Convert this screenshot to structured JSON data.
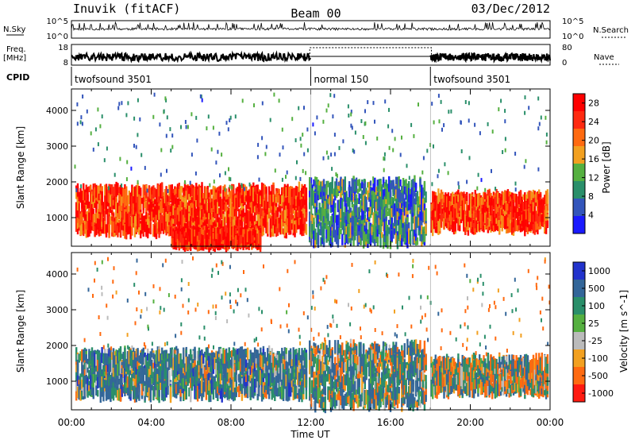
{
  "header": {
    "station": "Inuvik (fitACF)",
    "beam": "Beam 00",
    "date": "03/Dec/2012"
  },
  "strips": {
    "nsky_label": "N.Sky",
    "nsky_ticks": [
      "10^5",
      "10^0"
    ],
    "nsearch_label": "N.Search",
    "freq_label_1": "Freq.",
    "freq_label_2": "[MHz]",
    "freq_ticks": [
      "18",
      "8"
    ],
    "nave_label": "Nave",
    "nave_ticks": [
      "80",
      "0"
    ],
    "cpid_label": "CPID",
    "cpid_segments": [
      {
        "label": "twofsound 3501",
        "start_hour": 0,
        "end_hour": 12
      },
      {
        "label": "normal 150",
        "start_hour": 12,
        "end_hour": 18
      },
      {
        "label": "twofsound 3501",
        "start_hour": 18,
        "end_hour": 24
      }
    ]
  },
  "chart_data": [
    {
      "type": "heatmap",
      "title": "",
      "xlabel": "Time UT",
      "ylabel": "Slant Range [km]",
      "xlim": [
        0,
        24
      ],
      "ylim": [
        200,
        4600
      ],
      "x_ticks": [
        "00:00",
        "04:00",
        "08:00",
        "12:00",
        "16:00",
        "20:00",
        "00:00"
      ],
      "y_ticks": [
        1000,
        2000,
        3000,
        4000
      ],
      "colorbar": {
        "label": "Power [dB]",
        "ticks": [
          4,
          8,
          12,
          16,
          20,
          24,
          28
        ],
        "range": [
          0,
          30
        ],
        "colors": [
          "#1a1aff",
          "#3355bb",
          "#2a8f6a",
          "#55b040",
          "#f2a020",
          "#ff6a10",
          "#ff2a10",
          "#ff0000"
        ]
      },
      "echo_regions": [
        {
          "x_start": 0.2,
          "x_end": 11.8,
          "y_start": 600,
          "y_end": 1800,
          "power_dB": 26
        },
        {
          "x_start": 5.0,
          "x_end": 9.5,
          "y_start": 250,
          "y_end": 600,
          "power_dB": 28
        },
        {
          "x_start": 11.9,
          "x_end": 17.8,
          "y_start": 300,
          "y_end": 2000,
          "power_dB": 8
        },
        {
          "x_start": 18.0,
          "x_end": 23.9,
          "y_start": 700,
          "y_end": 1600,
          "power_dB": 26
        }
      ]
    },
    {
      "type": "heatmap",
      "title": "",
      "xlabel": "Time UT",
      "ylabel": "Slant Range [km]",
      "xlim": [
        0,
        24
      ],
      "ylim": [
        200,
        4600
      ],
      "x_ticks": [
        "00:00",
        "04:00",
        "08:00",
        "12:00",
        "16:00",
        "20:00",
        "00:00"
      ],
      "y_ticks": [
        1000,
        2000,
        3000,
        4000
      ],
      "colorbar": {
        "label": "Velocity [m s^-1]",
        "ticks": [
          1000,
          500,
          100,
          25,
          -25,
          -100,
          -500,
          -1000
        ],
        "range": [
          -1200,
          1200
        ],
        "colors": [
          "#2233cc",
          "#336699",
          "#2a8f6a",
          "#55b040",
          "#bbbbbb",
          "#f2a020",
          "#ff6a10",
          "#ff1a10"
        ]
      },
      "echo_regions": [
        {
          "x_start": 0.2,
          "x_end": 11.8,
          "y_start": 600,
          "y_end": 1800,
          "velocity": 300
        },
        {
          "x_start": 11.9,
          "x_end": 17.8,
          "y_start": 300,
          "y_end": 2000,
          "velocity": 200
        },
        {
          "x_start": 18.0,
          "x_end": 23.9,
          "y_start": 700,
          "y_end": 1600,
          "velocity": 50
        }
      ]
    }
  ]
}
